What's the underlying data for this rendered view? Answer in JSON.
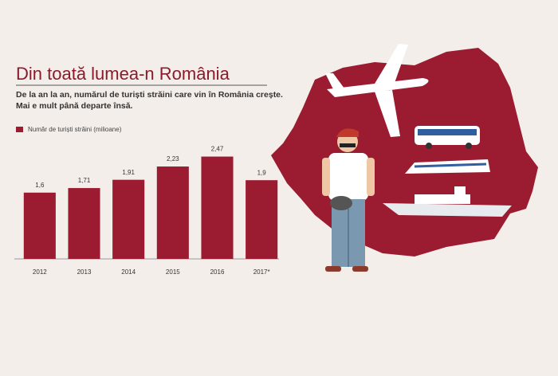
{
  "chart_data": {
    "type": "bar",
    "title": "Din toată lumea-n România",
    "subtitle": [
      "De la an la an, numărul de turiști străini care vin în România crește.",
      "Mai e mult până departe însă."
    ],
    "legend": "Număr de turiști străini (milioane)",
    "categories": [
      "2012",
      "2013",
      "2014",
      "2015",
      "2016",
      "2017*"
    ],
    "values": [
      1.6,
      1.71,
      1.91,
      2.23,
      2.47,
      1.9
    ],
    "value_labels": [
      "1,6",
      "1,71",
      "1,91",
      "2,23",
      "2,47",
      "1,9"
    ],
    "color": "#9b1b30",
    "ylim": [
      0,
      2.5
    ]
  }
}
